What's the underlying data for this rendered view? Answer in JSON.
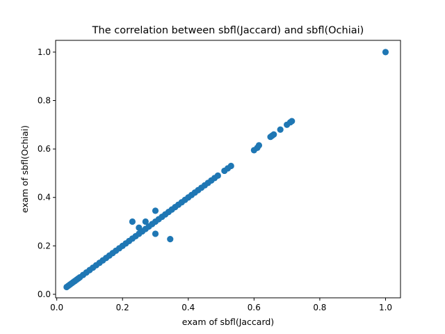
{
  "chart_data": {
    "type": "scatter",
    "title": "The correlation between sbfl(Jaccard) and sbfl(Ochiai)",
    "xlabel": "exam of sbfl(Jaccard)",
    "ylabel": "exam of sbfl(Ochiai)",
    "xlim": [
      -0.0035,
      1.0455
    ],
    "ylim": [
      -0.0145,
      1.0485
    ],
    "xticks": [
      0.0,
      0.2,
      0.4,
      0.6,
      0.8,
      1.0
    ],
    "yticks": [
      0.0,
      0.2,
      0.4,
      0.6,
      0.8,
      1.0
    ],
    "xtick_labels": [
      "0.0",
      "0.2",
      "0.4",
      "0.6",
      "0.8",
      "1.0"
    ],
    "ytick_labels": [
      "0.0",
      "0.2",
      "0.4",
      "0.6",
      "0.8",
      "1.0"
    ],
    "grid": false,
    "marker_color": "#1f77b4",
    "x": [
      0.03,
      0.035,
      0.04,
      0.045,
      0.05,
      0.055,
      0.06,
      0.065,
      0.07,
      0.08,
      0.09,
      0.1,
      0.11,
      0.12,
      0.13,
      0.14,
      0.15,
      0.16,
      0.17,
      0.18,
      0.19,
      0.2,
      0.21,
      0.22,
      0.23,
      0.24,
      0.25,
      0.26,
      0.27,
      0.28,
      0.29,
      0.3,
      0.31,
      0.32,
      0.33,
      0.34,
      0.35,
      0.36,
      0.37,
      0.38,
      0.39,
      0.4,
      0.41,
      0.42,
      0.43,
      0.44,
      0.45,
      0.46,
      0.47,
      0.48,
      0.49,
      0.51,
      0.52,
      0.53,
      0.6,
      0.61,
      0.615,
      0.65,
      0.655,
      0.66,
      0.68,
      0.7,
      0.71,
      0.715,
      1.0,
      0.23,
      0.25,
      0.27,
      0.3,
      0.3,
      0.345
    ],
    "y": [
      0.03,
      0.035,
      0.04,
      0.045,
      0.05,
      0.055,
      0.06,
      0.065,
      0.07,
      0.08,
      0.09,
      0.1,
      0.11,
      0.12,
      0.13,
      0.14,
      0.15,
      0.16,
      0.17,
      0.18,
      0.19,
      0.2,
      0.21,
      0.22,
      0.23,
      0.24,
      0.25,
      0.26,
      0.27,
      0.28,
      0.29,
      0.3,
      0.31,
      0.32,
      0.33,
      0.34,
      0.35,
      0.36,
      0.37,
      0.38,
      0.39,
      0.4,
      0.41,
      0.42,
      0.43,
      0.44,
      0.45,
      0.46,
      0.47,
      0.48,
      0.49,
      0.51,
      0.52,
      0.53,
      0.595,
      0.605,
      0.615,
      0.65,
      0.655,
      0.66,
      0.68,
      0.7,
      0.71,
      0.715,
      1.0,
      0.3,
      0.275,
      0.3,
      0.345,
      0.25,
      0.228
    ]
  }
}
